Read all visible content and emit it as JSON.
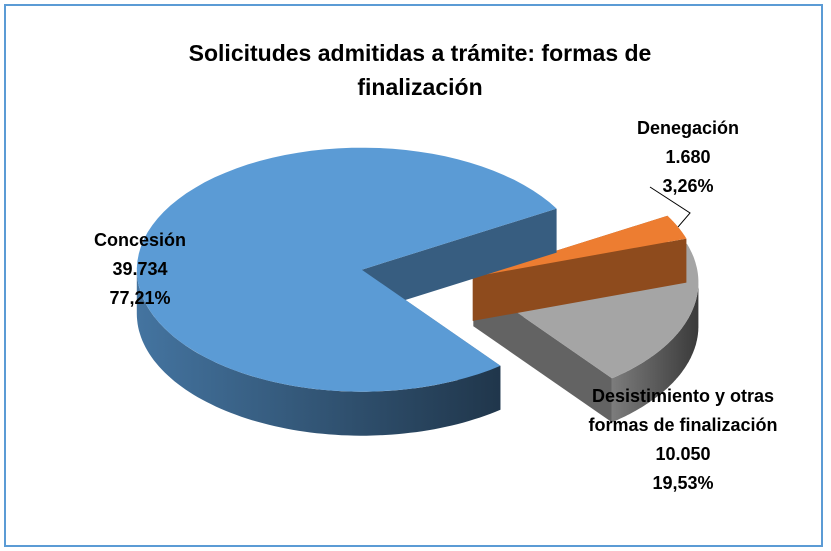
{
  "chart_data": {
    "type": "pie3d",
    "title": "Solicitudes admitidas a trámite: formas de finalización",
    "categories": [
      "Concesión",
      "Denegación",
      "Desistimiento y otras formas de finalización"
    ],
    "values": [
      39734,
      1680,
      10050
    ],
    "value_labels": [
      "39.734",
      "1.680",
      "10.050"
    ],
    "percentages": [
      77.21,
      3.26,
      19.53
    ],
    "percentage_labels": [
      "77,21%",
      "3,26%",
      "19,53%"
    ],
    "colors": [
      "#5b9bd5",
      "#ed7d31",
      "#a5a5a5"
    ]
  }
}
